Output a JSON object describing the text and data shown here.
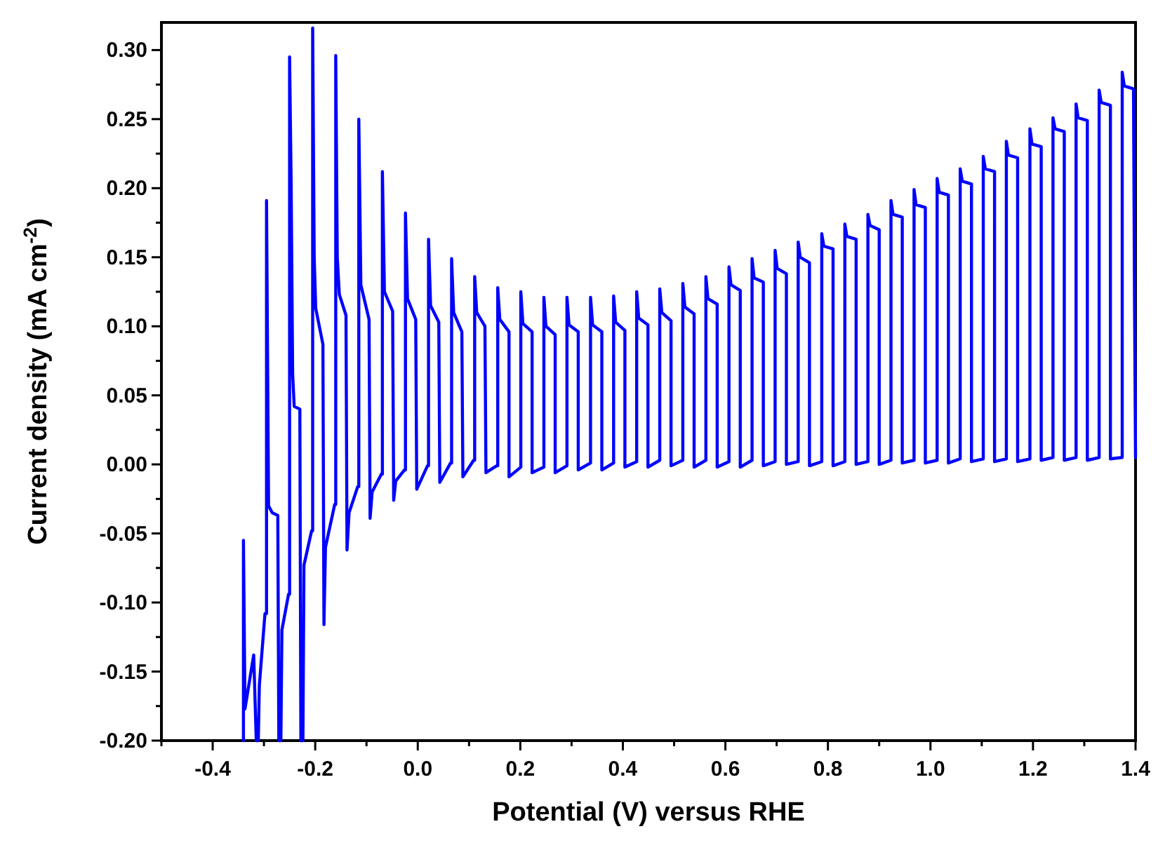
{
  "chart_data": {
    "type": "line",
    "xlabel": "Potential (V) versus RHE",
    "ylabel": "Current density (mA cm$^{-2}$)",
    "xlim": [
      -0.5,
      1.4
    ],
    "ylim": [
      -0.2,
      0.32
    ],
    "xticks": [
      {
        "value": -0.5,
        "label": null
      },
      -0.4,
      {
        "value": -0.3,
        "label": null
      },
      -0.2,
      {
        "value": -0.1,
        "label": null
      },
      {
        "value": 0,
        "label": "0.0"
      },
      {
        "value": 0.1,
        "label": null
      },
      0.2,
      {
        "value": 0.3,
        "label": null
      },
      0.4,
      {
        "value": 0.5,
        "label": null
      },
      0.6,
      {
        "value": 0.7,
        "label": null
      },
      0.8,
      {
        "value": 0.9,
        "label": null
      },
      {
        "value": 1,
        "label": "1.0"
      },
      {
        "value": 1.1,
        "label": null
      },
      1.2,
      {
        "value": 1.3,
        "label": null
      },
      1.4
    ],
    "yticks": [
      {
        "value": -0.2,
        "label": "-0.20"
      },
      {
        "value": -0.175,
        "label": null
      },
      {
        "value": -0.15,
        "label": "-0.15"
      },
      {
        "value": -0.125,
        "label": null
      },
      {
        "value": -0.1,
        "label": "-0.10"
      },
      {
        "value": -0.075,
        "label": null
      },
      {
        "value": -0.05,
        "label": "-0.05"
      },
      {
        "value": -0.025,
        "label": null
      },
      {
        "value": 0,
        "label": "0.00"
      },
      {
        "value": 0.025,
        "label": null
      },
      {
        "value": 0.05,
        "label": "0.05"
      },
      {
        "value": 0.075,
        "label": null
      },
      {
        "value": 0.1,
        "label": "0.10"
      },
      {
        "value": 0.125,
        "label": null
      },
      {
        "value": 0.15,
        "label": "0.15"
      },
      {
        "value": 0.175,
        "label": null
      },
      {
        "value": 0.2,
        "label": "0.20"
      },
      {
        "value": 0.225,
        "label": null
      },
      {
        "value": 0.25,
        "label": "0.25"
      },
      {
        "value": 0.275,
        "label": null
      },
      {
        "value": 0.3,
        "label": "0.30"
      }
    ],
    "x": [
      -0.34,
      -0.34,
      -0.337,
      -0.32,
      -0.315,
      -0.311,
      -0.309,
      -0.298,
      -0.295,
      -0.295,
      -0.291,
      -0.284,
      -0.273,
      -0.271,
      -0.267,
      -0.265,
      -0.252,
      -0.25,
      -0.25,
      -0.247,
      -0.244,
      -0.241,
      -0.23,
      -0.228,
      -0.224,
      -0.222,
      -0.207,
      -0.205,
      -0.205,
      -0.202,
      -0.199,
      -0.185,
      -0.183,
      -0.18,
      -0.162,
      -0.16,
      -0.16,
      -0.157,
      -0.153,
      -0.14,
      -0.138,
      -0.134,
      -0.117,
      -0.115,
      -0.115,
      -0.111,
      -0.095,
      -0.093,
      -0.089,
      -0.071,
      -0.069,
      -0.069,
      -0.065,
      -0.049,
      -0.047,
      -0.043,
      -0.026,
      -0.024,
      -0.024,
      -0.02,
      -0.004,
      -0.002,
      0.019,
      0.021,
      0.021,
      0.025,
      0.041,
      0.043,
      0.064,
      0.066,
      0.066,
      0.07,
      0.086,
      0.088,
      0.109,
      0.111,
      0.111,
      0.115,
      0.131,
      0.133,
      0.154,
      0.156,
      0.156,
      0.16,
      0.178,
      0.178,
      0.201,
      0.201,
      0.205,
      0.223,
      0.223,
      0.246,
      0.246,
      0.25,
      0.268,
      0.268,
      0.291,
      0.291,
      0.295,
      0.313,
      0.313,
      0.337,
      0.337,
      0.341,
      0.359,
      0.359,
      0.382,
      0.382,
      0.386,
      0.404,
      0.404,
      0.427,
      0.427,
      0.431,
      0.449,
      0.449,
      0.472,
      0.472,
      0.476,
      0.494,
      0.494,
      0.517,
      0.517,
      0.521,
      0.539,
      0.539,
      0.562,
      0.562,
      0.566,
      0.584,
      0.584,
      0.607,
      0.607,
      0.611,
      0.629,
      0.629,
      0.652,
      0.652,
      0.656,
      0.674,
      0.674,
      0.697,
      0.697,
      0.701,
      0.719,
      0.719,
      0.742,
      0.742,
      0.746,
      0.764,
      0.764,
      0.788,
      0.788,
      0.792,
      0.81,
      0.81,
      0.833,
      0.833,
      0.837,
      0.855,
      0.855,
      0.878,
      0.878,
      0.882,
      0.9,
      0.9,
      0.923,
      0.923,
      0.927,
      0.945,
      0.945,
      0.968,
      0.968,
      0.972,
      0.99,
      0.99,
      1.013,
      1.013,
      1.017,
      1.035,
      1.035,
      1.058,
      1.058,
      1.062,
      1.08,
      1.08,
      1.103,
      1.103,
      1.107,
      1.125,
      1.125,
      1.148,
      1.148,
      1.152,
      1.17,
      1.17,
      1.194,
      1.194,
      1.198,
      1.216,
      1.216,
      1.239,
      1.239,
      1.243,
      1.261,
      1.261,
      1.284,
      1.284,
      1.288,
      1.306,
      1.306,
      1.329,
      1.329,
      1.333,
      1.351,
      1.351,
      1.374,
      1.374,
      1.378,
      1.396,
      1.398,
      1.4
    ],
    "series": [
      {
        "color": "#0000ff",
        "values": [
          -0.2,
          -0.055,
          -0.177,
          -0.138,
          -0.2,
          -0.2,
          -0.16,
          -0.108,
          -0.108,
          0.191,
          -0.03,
          -0.035,
          -0.037,
          -0.2,
          -0.2,
          -0.12,
          -0.094,
          -0.094,
          0.295,
          0.204,
          0.065,
          0.042,
          0.04,
          -0.2,
          -0.2,
          -0.073,
          -0.048,
          -0.048,
          0.316,
          0.15,
          0.113,
          0.087,
          -0.116,
          -0.06,
          -0.029,
          -0.029,
          0.296,
          0.15,
          0.123,
          0.108,
          -0.062,
          -0.035,
          -0.016,
          -0.016,
          0.25,
          0.13,
          0.105,
          -0.039,
          -0.02,
          -0.007,
          -0.007,
          0.212,
          0.125,
          0.111,
          -0.026,
          -0.012,
          -0.004,
          -0.004,
          0.182,
          0.12,
          0.105,
          -0.018,
          -0.001,
          -0.001,
          0.163,
          0.115,
          0.103,
          -0.013,
          0.001,
          0.001,
          0.149,
          0.11,
          0.096,
          -0.009,
          0.003,
          0.003,
          0.136,
          0.11,
          0.1,
          -0.006,
          -0.001,
          -0.001,
          0.128,
          0.105,
          0.096,
          -0.009,
          -0.002,
          0.125,
          0.102,
          0.096,
          -0.006,
          -0.002,
          0.121,
          0.1,
          0.094,
          -0.006,
          -0.001,
          0.121,
          0.101,
          0.096,
          -0.004,
          0.001,
          0.121,
          0.101,
          0.096,
          -0.004,
          0.001,
          0.122,
          0.103,
          0.097,
          -0.002,
          0.002,
          0.125,
          0.106,
          0.101,
          -0.002,
          0.003,
          0.127,
          0.11,
          0.104,
          -0.001,
          0.003,
          0.131,
          0.114,
          0.109,
          -0.002,
          0.003,
          0.136,
          0.12,
          0.116,
          -0.002,
          0.002,
          0.143,
          0.13,
          0.126,
          -0.002,
          0.003,
          0.149,
          0.135,
          0.132,
          -0.001,
          0.002,
          0.155,
          0.142,
          0.138,
          0.0,
          0.002,
          0.161,
          0.15,
          0.146,
          -0.001,
          0.002,
          0.167,
          0.158,
          0.156,
          -0.001,
          0.002,
          0.174,
          0.165,
          0.163,
          0.0,
          0.002,
          0.181,
          0.173,
          0.17,
          0.0,
          0.003,
          0.191,
          0.181,
          0.179,
          0.001,
          0.003,
          0.199,
          0.188,
          0.186,
          0.001,
          0.003,
          0.207,
          0.197,
          0.195,
          0.001,
          0.004,
          0.214,
          0.205,
          0.203,
          0.002,
          0.004,
          0.223,
          0.214,
          0.212,
          0.002,
          0.004,
          0.234,
          0.224,
          0.222,
          0.002,
          0.004,
          0.243,
          0.232,
          0.23,
          0.003,
          0.005,
          0.251,
          0.243,
          0.241,
          0.003,
          0.005,
          0.261,
          0.251,
          0.249,
          0.003,
          0.005,
          0.271,
          0.262,
          0.26,
          0.004,
          0.005,
          0.284,
          0.274,
          0.272,
          0.12,
          0.005
        ]
      }
    ]
  }
}
